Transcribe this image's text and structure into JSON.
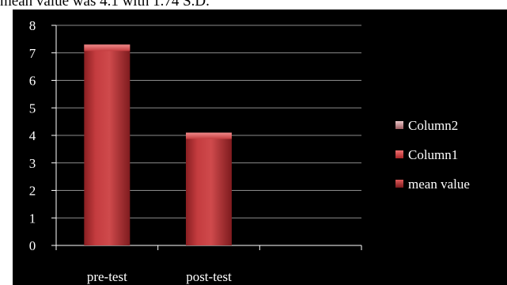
{
  "caption": "mean value was 4.1 with 1.74 S.D.",
  "chart_data": {
    "type": "bar",
    "title": "",
    "xlabel": "",
    "ylabel": "",
    "categories": [
      "pre-test",
      "post-test",
      ""
    ],
    "series": [
      {
        "name": "mean value",
        "values": [
          7.3,
          4.1,
          null
        ],
        "color": "#c0393b"
      },
      {
        "name": "Column1",
        "values": [
          null,
          null,
          null
        ],
        "color": "#c0393b"
      },
      {
        "name": "Column2",
        "values": [
          null,
          null,
          null
        ],
        "color": "#b06a6e"
      }
    ],
    "ylim": [
      0,
      8
    ],
    "yticks": [
      "0",
      "1",
      "2",
      "3",
      "4",
      "5",
      "6",
      "7",
      "8"
    ],
    "grid": true,
    "legend_position": "right",
    "legend_order": [
      "Column2",
      "Column1",
      "mean value"
    ],
    "background": "#000000",
    "text_color": "#ffffff"
  }
}
